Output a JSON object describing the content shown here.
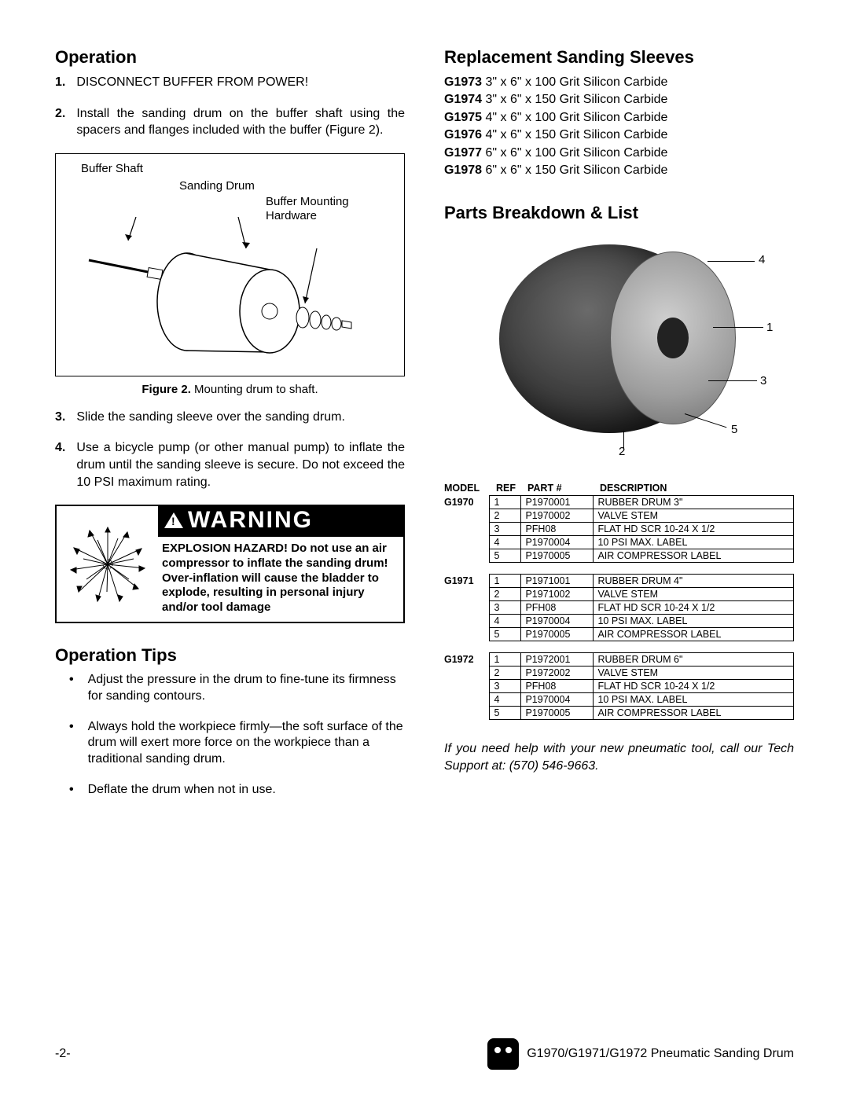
{
  "left": {
    "operation_heading": "Operation",
    "steps": [
      {
        "n": "1.",
        "text": "DISCONNECT BUFFER FROM POWER!"
      },
      {
        "n": "2.",
        "text": "Install the sanding drum on the buffer shaft using the spacers and flanges included with the buffer (Figure 2)."
      },
      {
        "n": "3.",
        "text": "Slide the sanding sleeve over the sanding drum."
      },
      {
        "n": "4.",
        "text": "Use a bicycle pump (or other manual pump) to inflate the drum until the sanding sleeve is secure. Do not exceed the 10 PSI maximum rating."
      }
    ],
    "fig_labels": {
      "buffer_shaft": "Buffer Shaft",
      "sanding_drum": "Sanding Drum",
      "mounting_hw_l1": "Buffer Mounting",
      "mounting_hw_l2": "Hardware"
    },
    "figure_caption_bold": "Figure 2.",
    "figure_caption_rest": " Mounting drum to shaft.",
    "warning": {
      "title": "WARNING",
      "hazard": "EXPLOSION HAZARD!",
      "body": "Do not use an air compressor to inflate the sanding drum! Over-inflation will cause the bladder to explode, resulting in personal injury and/or tool damage"
    },
    "tips_heading": "Operation Tips",
    "tips": [
      "Adjust the pressure in the drum to fine-tune its firmness for sanding contours.",
      "Always hold the workpiece firmly—the soft surface of the drum will exert more force on the workpiece than a traditional sanding drum.",
      "Deflate the drum when not in use."
    ]
  },
  "right": {
    "sleeves_heading": "Replacement Sanding Sleeves",
    "sleeves": [
      {
        "code": "G1973",
        "desc": " 3\" x 6\" x 100 Grit Silicon Carbide"
      },
      {
        "code": "G1974",
        "desc": " 3\" x 6\" x 150 Grit Silicon Carbide"
      },
      {
        "code": "G1975",
        "desc": " 4\" x 6\" x 100 Grit Silicon Carbide"
      },
      {
        "code": "G1976",
        "desc": " 4\" x 6\" x 150 Grit Silicon Carbide"
      },
      {
        "code": "G1977",
        "desc": " 6\" x 6\" x 100 Grit Silicon Carbide"
      },
      {
        "code": "G1978",
        "desc": " 6\" x 6\" x 150 Grit Silicon Carbide"
      }
    ],
    "breakdown_heading": "Parts Breakdown & List",
    "callouts": {
      "c1": "1",
      "c2": "2",
      "c3": "3",
      "c4": "4",
      "c5": "5"
    },
    "table_headers": {
      "model": "MODEL",
      "ref": "REF",
      "part": "PART #",
      "desc": "DESCRIPTION"
    },
    "models": [
      {
        "model": "G1970",
        "rows": [
          {
            "ref": "1",
            "part": "P1970001",
            "desc": "RUBBER DRUM 3\""
          },
          {
            "ref": "2",
            "part": "P1970002",
            "desc": "VALVE STEM"
          },
          {
            "ref": "3",
            "part": "PFH08",
            "desc": "FLAT HD SCR 10-24 X 1/2"
          },
          {
            "ref": "4",
            "part": "P1970004",
            "desc": "10 PSI MAX. LABEL"
          },
          {
            "ref": "5",
            "part": "P1970005",
            "desc": "AIR COMPRESSOR LABEL"
          }
        ]
      },
      {
        "model": "G1971",
        "rows": [
          {
            "ref": "1",
            "part": "P1971001",
            "desc": "RUBBER DRUM 4\""
          },
          {
            "ref": "2",
            "part": "P1971002",
            "desc": "VALVE STEM"
          },
          {
            "ref": "3",
            "part": "PFH08",
            "desc": "FLAT HD SCR 10-24 X 1/2"
          },
          {
            "ref": "4",
            "part": "P1970004",
            "desc": "10 PSI MAX. LABEL"
          },
          {
            "ref": "5",
            "part": "P1970005",
            "desc": "AIR COMPRESSOR LABEL"
          }
        ]
      },
      {
        "model": "G1972",
        "rows": [
          {
            "ref": "1",
            "part": "P1972001",
            "desc": "RUBBER DRUM 6\""
          },
          {
            "ref": "2",
            "part": "P1972002",
            "desc": "VALVE STEM"
          },
          {
            "ref": "3",
            "part": "PFH08",
            "desc": "FLAT HD SCR 10-24 X 1/2"
          },
          {
            "ref": "4",
            "part": "P1970004",
            "desc": "10 PSI MAX. LABEL"
          },
          {
            "ref": "5",
            "part": "P1970005",
            "desc": "AIR COMPRESSOR LABEL"
          }
        ]
      }
    ],
    "support_note": "If you need help with your new pneumatic tool, call our Tech Support at: (570) 546-9663."
  },
  "footer": {
    "page": "-2-",
    "title": "G1970/G1971/G1972 Pneumatic Sanding Drum"
  },
  "colors": {
    "text": "#000000",
    "bg": "#ffffff",
    "warning_bg": "#000000",
    "warning_fg": "#ffffff"
  }
}
